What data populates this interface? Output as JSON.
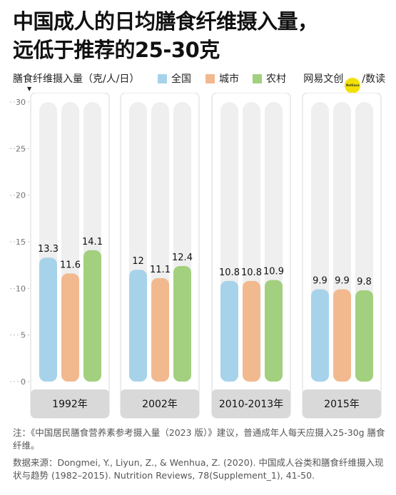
{
  "title_lines": [
    "中国成人的日均膳食纤维摄入量，",
    "远低于推荐的25-30克"
  ],
  "brand": {
    "pre": "网易文创",
    "mark": "NetEase",
    "post": "/数读"
  },
  "colors": {
    "全国": "#a6d3ea",
    "城市": "#f2b98f",
    "农村": "#a2d07e",
    "track": "#efefef",
    "panel": "#e0e0e0",
    "label_bg": "#d9d9d9"
  },
  "chart_data": {
    "type": "bar",
    "ylabel": "膳食纤维摄入量（克/人/日）",
    "categories": [
      "1992年",
      "2002年",
      "2010-2013年",
      "2015年"
    ],
    "series": [
      {
        "name": "全国",
        "values": [
          13.3,
          12,
          10.8,
          9.9
        ],
        "labels": [
          "13.3",
          "12",
          "10.8",
          "9.9"
        ]
      },
      {
        "name": "城市",
        "values": [
          11.6,
          11.1,
          10.8,
          9.9
        ],
        "labels": [
          "11.6",
          "11.1",
          "10.8",
          "9.9"
        ]
      },
      {
        "name": "农村",
        "values": [
          14.1,
          12.4,
          10.9,
          9.8
        ],
        "labels": [
          "14.1",
          "12.4",
          "10.9",
          "9.8"
        ]
      }
    ],
    "ylim": [
      0,
      30
    ],
    "yticks": [
      "0",
      "5",
      "10",
      "15",
      "20",
      "25",
      "30"
    ],
    "grid": true,
    "legend": "top"
  },
  "notes": [
    "注：《中国居民膳食营养素参考摄入量（2023 版）》建议，普通成年人每天应摄入25-30g 膳食纤维。",
    "数据来源：Dongmei, Y., Liyun, Z., & Wenhua, Z. (2020). 中国成人谷类和膳食纤维摄入现状与趋势 (1982–2015). Nutrition Reviews, 78(Supplement_1), 41-50."
  ]
}
